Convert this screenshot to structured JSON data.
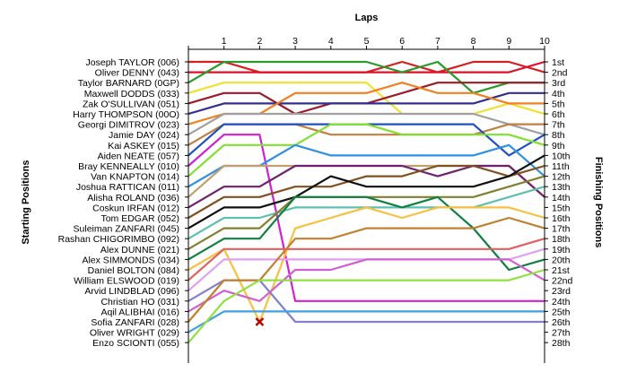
{
  "chart_data": {
    "type": "line",
    "title": "Laps",
    "ylabel_left": "Starting Positions",
    "ylabel_right": "Finishing Positions",
    "laps": [
      1,
      2,
      3,
      4,
      5,
      6,
      7,
      8,
      9,
      10
    ],
    "drivers": [
      "Joseph TAYLOR (006)",
      "Oliver DENNY (043)",
      "Taylor BARNARD (0GP)",
      "Maxwell DODDS (033)",
      "Zak O'SULLIVAN (051)",
      "Harry THOMPSON (00O)",
      "Georgi DIMITROV (023)",
      "Jamie DAY (024)",
      "Kai ASKEY (015)",
      "Aiden NEATE (057)",
      "Bray KENNEALLY (010)",
      "Van KNAPTON (014)",
      "Joshua RATTICAN (011)",
      "Alisha ROLAND (036)",
      "Coskun IRFAN (012)",
      "Tom EDGAR (052)",
      "Suleiman ZANFARI  (045)",
      "Rashan CHIGORIMBO (092)",
      "Alex DUNNE (021)",
      "Alex SIMMONDS (034)",
      "Daniel BOLTON (084)",
      "William ELSWOOD (019)",
      "Arvid LINDBLAD (096)",
      "Christian HO (031)",
      "Aqil ALIBHAI (016)",
      "Sofia ZANFARI (028)",
      "Oliver WRIGHT (029)",
      "Enzo SCIONTI (055)"
    ],
    "finishing_positions": [
      "1st",
      "2nd",
      "3rd",
      "4th",
      "5th",
      "6th",
      "7th",
      "8th",
      "9th",
      "10th",
      "11th",
      "12th",
      "13th",
      "14th",
      "15th",
      "16th",
      "17th",
      "18th",
      "19th",
      "20th",
      "21st",
      "22nd",
      "23rd",
      "24th",
      "25th",
      "26th",
      "27th",
      "28th"
    ],
    "retired_marker": "x",
    "series": [
      {
        "color": "#d42020",
        "values": [
          1,
          2,
          2,
          2,
          2,
          1,
          2,
          1,
          1,
          2
        ]
      },
      {
        "color": "#e0102a",
        "values": [
          2,
          2,
          2,
          2,
          2,
          2,
          2,
          2,
          2,
          1
        ]
      },
      {
        "color": "#2a9a2a",
        "values": [
          1,
          1,
          1,
          1,
          1,
          2,
          1,
          4,
          3,
          3
        ]
      },
      {
        "color": "#f0e030",
        "values": [
          3,
          3,
          3,
          3,
          3,
          6,
          6,
          6,
          5,
          6
        ]
      },
      {
        "color": "#9b1b2b",
        "values": [
          4,
          4,
          6,
          5,
          5,
          4,
          3,
          3,
          3,
          3
        ]
      },
      {
        "color": "#303090",
        "values": [
          5,
          5,
          5,
          5,
          5,
          5,
          5,
          5,
          4,
          4
        ]
      },
      {
        "color": "#f08020",
        "values": [
          6,
          6,
          4,
          4,
          4,
          3,
          4,
          4,
          5,
          5
        ]
      },
      {
        "color": "#a0a0a0",
        "values": [
          6,
          6,
          6,
          6,
          6,
          6,
          6,
          6,
          7,
          8
        ]
      },
      {
        "color": "#c08040",
        "values": [
          7,
          7,
          7,
          8,
          8,
          8,
          8,
          8,
          7,
          7
        ]
      },
      {
        "color": "#2050c0",
        "values": [
          7,
          7,
          7,
          7,
          7,
          7,
          7,
          7,
          10,
          8
        ]
      },
      {
        "color": "#d020d0",
        "values": [
          8,
          8,
          24,
          24,
          24,
          24,
          24,
          24,
          24,
          24
        ]
      },
      {
        "color": "#80e030",
        "values": [
          9,
          9,
          9,
          7,
          7,
          8,
          8,
          8,
          8,
          9
        ]
      },
      {
        "color": "#3090e0",
        "values": [
          11,
          11,
          9,
          10,
          10,
          10,
          10,
          10,
          9,
          12
        ]
      },
      {
        "color": "#c0a070",
        "values": [
          11,
          11,
          11,
          11,
          11,
          11,
          11,
          11,
          11,
          14
        ]
      },
      {
        "color": "#702070",
        "values": [
          13,
          13,
          11,
          11,
          11,
          11,
          12,
          11,
          11,
          14
        ]
      },
      {
        "color": "#805020",
        "values": [
          14,
          14,
          13,
          13,
          12,
          12,
          11,
          11,
          12,
          11
        ]
      },
      {
        "color": "#101010",
        "values": [
          15,
          15,
          14,
          12,
          13,
          13,
          13,
          13,
          12,
          10
        ]
      },
      {
        "color": "#60c0b0",
        "values": [
          16,
          16,
          15,
          15,
          15,
          15,
          15,
          15,
          14,
          13
        ]
      },
      {
        "color": "#808030",
        "values": [
          17,
          17,
          14,
          14,
          14,
          14,
          14,
          14,
          13,
          12
        ]
      },
      {
        "color": "#108040",
        "values": [
          18,
          18,
          14,
          14,
          14,
          15,
          14,
          17,
          21,
          20
        ]
      },
      {
        "color": "#f8c040",
        "values": [
          19,
          26,
          17,
          16,
          15,
          16,
          15,
          15,
          15,
          16
        ]
      },
      {
        "color": "#e06060",
        "values": [
          19,
          19,
          19,
          19,
          19,
          19,
          19,
          19,
          19,
          18
        ]
      },
      {
        "color": "#e0a0f0",
        "values": [
          20,
          20,
          20,
          20,
          20,
          20,
          20,
          20,
          20,
          19
        ]
      },
      {
        "color": "#8080d0",
        "values": [
          22,
          22,
          26,
          26,
          26,
          26,
          26,
          26,
          26,
          26
        ]
      },
      {
        "color": "#d060d0",
        "values": [
          23,
          24,
          21,
          21,
          20,
          20,
          20,
          20,
          20,
          22
        ]
      },
      {
        "color": "#c08030",
        "values": [
          22,
          22,
          18,
          18,
          17,
          17,
          17,
          17,
          16,
          17
        ]
      },
      {
        "color": "#40a0e0",
        "values": [
          25,
          25,
          25,
          25,
          25,
          25,
          25,
          25,
          25,
          25
        ]
      },
      {
        "color": "#90e040",
        "values": [
          24,
          22,
          22,
          22,
          22,
          22,
          22,
          22,
          22,
          21
        ]
      }
    ]
  }
}
